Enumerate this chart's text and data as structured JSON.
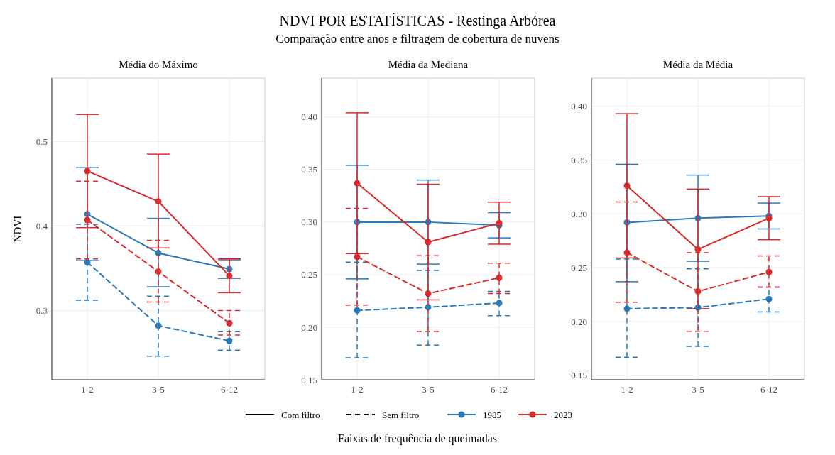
{
  "chart_data": [
    {
      "type": "line",
      "title": "Média do Máximo",
      "ylabel": "NDVI",
      "categories": [
        "1-2",
        "3-5",
        "6-12"
      ],
      "ylim": [
        0.218,
        0.575
      ],
      "yticks": [
        0.3,
        0.4,
        0.5
      ],
      "grid": true,
      "marker": "circle",
      "legend": "bottom",
      "annotations": [
        "NDVI POR ESTATÍSTICAS - Restinga Arbórea",
        "Comparação entre anos e filtragem de cobertura de nuvens",
        "Com filtro",
        "Sem filtro"
      ],
      "series": [
        {
          "name": "1985",
          "color": "#2a7ab9",
          "line_style": "solid",
          "values": [
            0.414,
            0.368,
            0.349
          ],
          "errors": [
            [
              0.359,
              0.469
            ],
            [
              0.328,
              0.409
            ],
            [
              0.338,
              0.36
            ]
          ]
        },
        {
          "name": "2023",
          "color": "#d92b2b",
          "line_style": "solid",
          "values": [
            0.465,
            0.429,
            0.341
          ],
          "errors": [
            [
              0.398,
              0.532
            ],
            [
              0.374,
              0.485
            ],
            [
              0.321,
              0.361
            ]
          ]
        },
        {
          "color": "#2a7ab9",
          "line_style": "dashed",
          "values": [
            0.357,
            0.282,
            0.264
          ],
          "errors": [
            [
              0.312,
              0.402
            ],
            [
              0.246,
              0.317
            ],
            [
              0.253,
              0.275
            ]
          ]
        },
        {
          "color": "#d92b2b",
          "line_style": "dashed",
          "values": [
            0.407,
            0.346,
            0.285
          ],
          "errors": [
            [
              0.361,
              0.453
            ],
            [
              0.31,
              0.383
            ],
            [
              0.271,
              0.3
            ]
          ]
        }
      ]
    },
    {
      "type": "line",
      "title": "Média da Mediana",
      "xlabel": "Faixas de frequência de queimadas",
      "categories": [
        "1-2",
        "3-5",
        "6-12"
      ],
      "ylim": [
        0.15,
        0.437
      ],
      "yticks": [
        {
          "value": 0.15,
          "label": "0.15"
        },
        {
          "value": 0.2,
          "label": "0.20"
        },
        {
          "value": 0.25,
          "label": "0.25"
        },
        {
          "value": 0.3,
          "label": "0.30"
        },
        {
          "value": 0.35,
          "label": "0.35"
        },
        {
          "value": 0.4,
          "label": "0.40"
        }
      ],
      "grid": true,
      "marker": "circle",
      "series": [
        {
          "color": "#2a7ab9",
          "line_style": "solid",
          "values": [
            0.3,
            0.3,
            0.297
          ],
          "errors": [
            [
              0.246,
              0.354
            ],
            [
              0.26,
              0.34
            ],
            [
              0.285,
              0.309
            ]
          ]
        },
        {
          "color": "#d92b2b",
          "line_style": "solid",
          "values": [
            0.337,
            0.281,
            0.299
          ],
          "errors": [
            [
              0.27,
              0.404
            ],
            [
              0.226,
              0.336
            ],
            [
              0.279,
              0.319
            ]
          ]
        },
        {
          "color": "#2a7ab9",
          "line_style": "dashed",
          "values": [
            0.216,
            0.219,
            0.223
          ],
          "errors": [
            [
              0.171,
              0.262
            ],
            [
              0.183,
              0.254
            ],
            [
              0.211,
              0.234
            ]
          ]
        },
        {
          "color": "#d92b2b",
          "line_style": "dashed",
          "values": [
            0.267,
            0.232,
            0.247
          ],
          "errors": [
            [
              0.221,
              0.313
            ],
            [
              0.196,
              0.268
            ],
            [
              0.232,
              0.261
            ]
          ]
        }
      ]
    },
    {
      "type": "line",
      "title": "Média da Média",
      "categories": [
        "1-2",
        "3-5",
        "6-12"
      ],
      "ylim": [
        0.146,
        0.426
      ],
      "yticks": [
        {
          "value": 0.15,
          "label": "0.15"
        },
        {
          "value": 0.2,
          "label": "0.20"
        },
        {
          "value": 0.25,
          "label": "0.25"
        },
        {
          "value": 0.3,
          "label": "0.30"
        },
        {
          "value": 0.35,
          "label": "0.35"
        },
        {
          "value": 0.4,
          "label": "0.40"
        }
      ],
      "grid": true,
      "marker": "circle",
      "series": [
        {
          "color": "#2a7ab9",
          "line_style": "solid",
          "values": [
            0.292,
            0.296,
            0.298
          ],
          "errors": [
            [
              0.237,
              0.346
            ],
            [
              0.256,
              0.336
            ],
            [
              0.286,
              0.31
            ]
          ]
        },
        {
          "color": "#d92b2b",
          "line_style": "solid",
          "values": [
            0.326,
            0.267,
            0.296
          ],
          "errors": [
            [
              0.259,
              0.393
            ],
            [
              0.212,
              0.323
            ],
            [
              0.276,
              0.316
            ]
          ]
        },
        {
          "color": "#2a7ab9",
          "line_style": "dashed",
          "values": [
            0.212,
            0.213,
            0.221
          ],
          "errors": [
            [
              0.167,
              0.258
            ],
            [
              0.177,
              0.249
            ],
            [
              0.209,
              0.232
            ]
          ]
        },
        {
          "color": "#d92b2b",
          "line_style": "dashed",
          "values": [
            0.264,
            0.228,
            0.246
          ],
          "errors": [
            [
              0.218,
              0.311
            ],
            [
              0.191,
              0.264
            ],
            [
              0.232,
              0.261
            ]
          ]
        }
      ]
    }
  ]
}
